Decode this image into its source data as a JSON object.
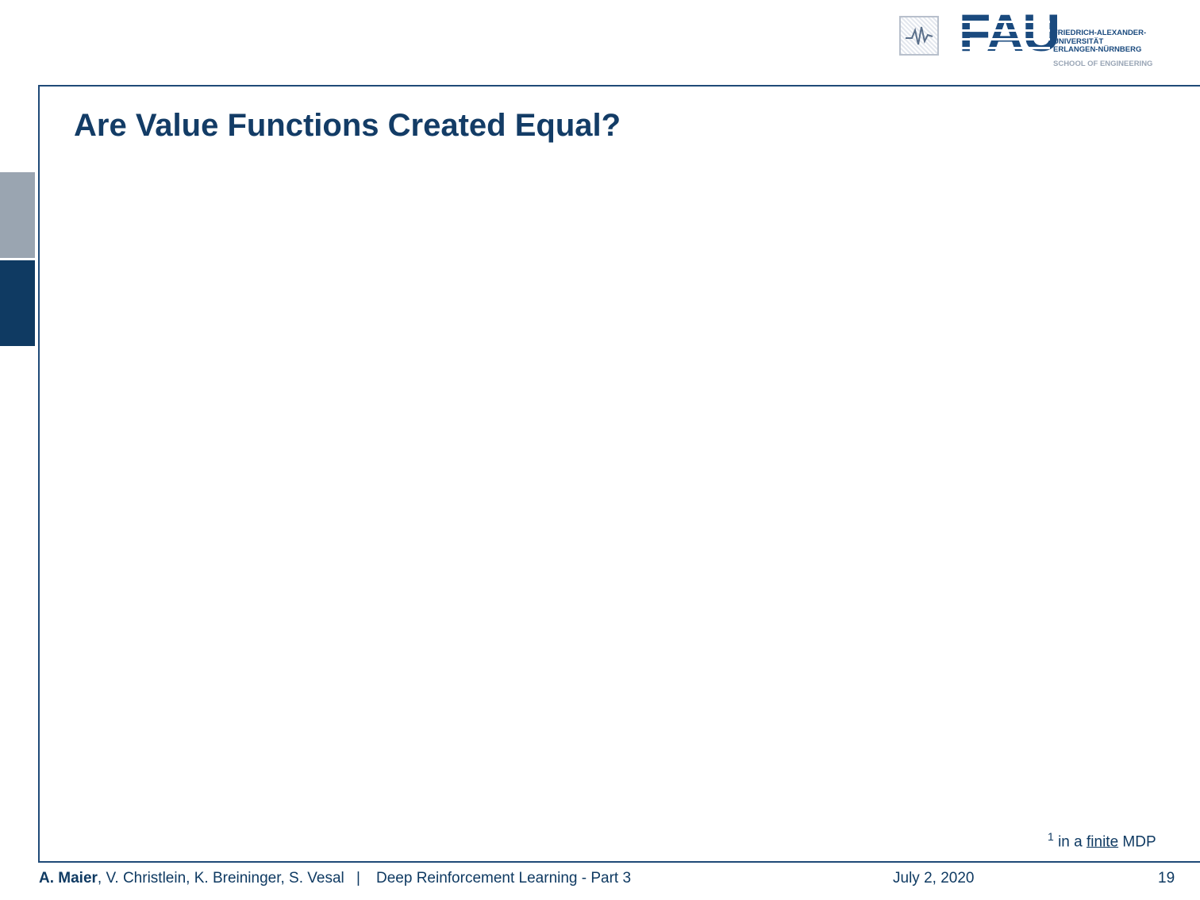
{
  "header": {
    "logo": {
      "mark": "FAU",
      "lines": [
        "FRIEDRICH-ALEXANDER-",
        "UNIVERSITÄT",
        "ERLANGEN-NÜRNBERG"
      ],
      "school": "SCHOOL OF ENGINEERING"
    }
  },
  "slide": {
    "title": "Are Value Functions Created Equal?",
    "footnote": {
      "marker": "1",
      "before": "in a",
      "underlined": "finite",
      "after": "MDP"
    }
  },
  "footer": {
    "lead_author": "A. Maier",
    "other_authors": ", V. Christlein, K. Breininger, S. Vesal",
    "separator": "|",
    "course": "Deep Reinforcement Learning - Part 3",
    "date": "July 2, 2020",
    "page": "19"
  }
}
